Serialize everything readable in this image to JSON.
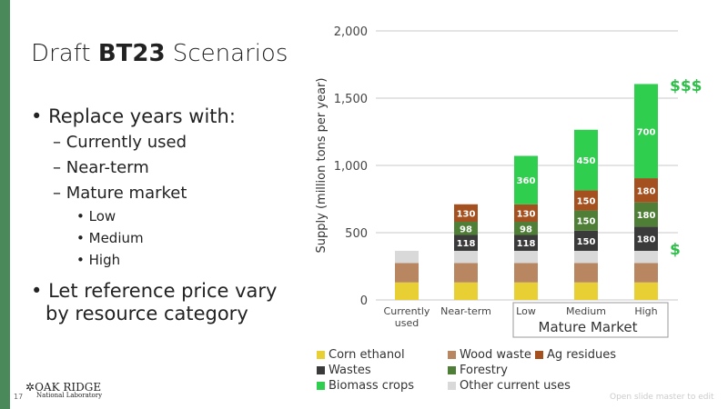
{
  "slide": {
    "title_prefix": "Draft ",
    "title_bold": "BT23",
    "title_suffix": " Scenarios",
    "page_number": "17",
    "bullets": [
      "Replace years with:",
      "Currently used",
      "Near-term",
      "Mature market",
      "Low",
      "Medium",
      "High",
      "Let reference price vary",
      "by resource category"
    ],
    "logo_main": "OAK RIDGE",
    "logo_sub": "National Laboratory",
    "footer": "Open slide master to edit"
  },
  "chart_data": {
    "type": "bar",
    "stacked": true,
    "categories": [
      "Currently used",
      "Near-term",
      "Low",
      "Medium",
      "High"
    ],
    "category_lines": [
      [
        "Currently",
        "used"
      ],
      [
        "Near-term"
      ],
      [
        "Low"
      ],
      [
        "Medium"
      ],
      [
        "High"
      ]
    ],
    "group_label": "Mature Market",
    "ylabel": "Supply (million tons per year)",
    "ylim": [
      0,
      2000
    ],
    "yticks": [
      0,
      500,
      1000,
      1500,
      2000
    ],
    "ytick_labels": [
      "0",
      "500",
      "1,000",
      "1,500",
      "2,000"
    ],
    "series": [
      {
        "name": "Corn ethanol",
        "color": "#e8cf34",
        "values": [
          130,
          130,
          130,
          130,
          130
        ],
        "labeled": false
      },
      {
        "name": "Wood waste",
        "color": "#b98662",
        "values": [
          145,
          145,
          145,
          145,
          145
        ],
        "labeled": false
      },
      {
        "name": "Other current uses",
        "color": "#d9d9d9",
        "values": [
          90,
          90,
          90,
          90,
          90
        ],
        "labeled": false
      },
      {
        "name": "Wastes",
        "color": "#3a3a3a",
        "values": [
          0,
          118,
          118,
          150,
          180
        ],
        "labeled": true
      },
      {
        "name": "Forestry",
        "color": "#4f7f37",
        "values": [
          0,
          98,
          98,
          150,
          180
        ],
        "labeled": true
      },
      {
        "name": "Ag residues",
        "color": "#a4501f",
        "values": [
          0,
          130,
          130,
          150,
          180
        ],
        "labeled": true
      },
      {
        "name": "Biomass crops",
        "color": "#2fce4f",
        "values": [
          0,
          0,
          360,
          450,
          700
        ],
        "labeled": true
      }
    ],
    "annotations": {
      "high_price": "$$$",
      "low_price": "$",
      "color": "#2fbf4a"
    },
    "legend_order": [
      0,
      3,
      6,
      1,
      4,
      2,
      5
    ]
  }
}
